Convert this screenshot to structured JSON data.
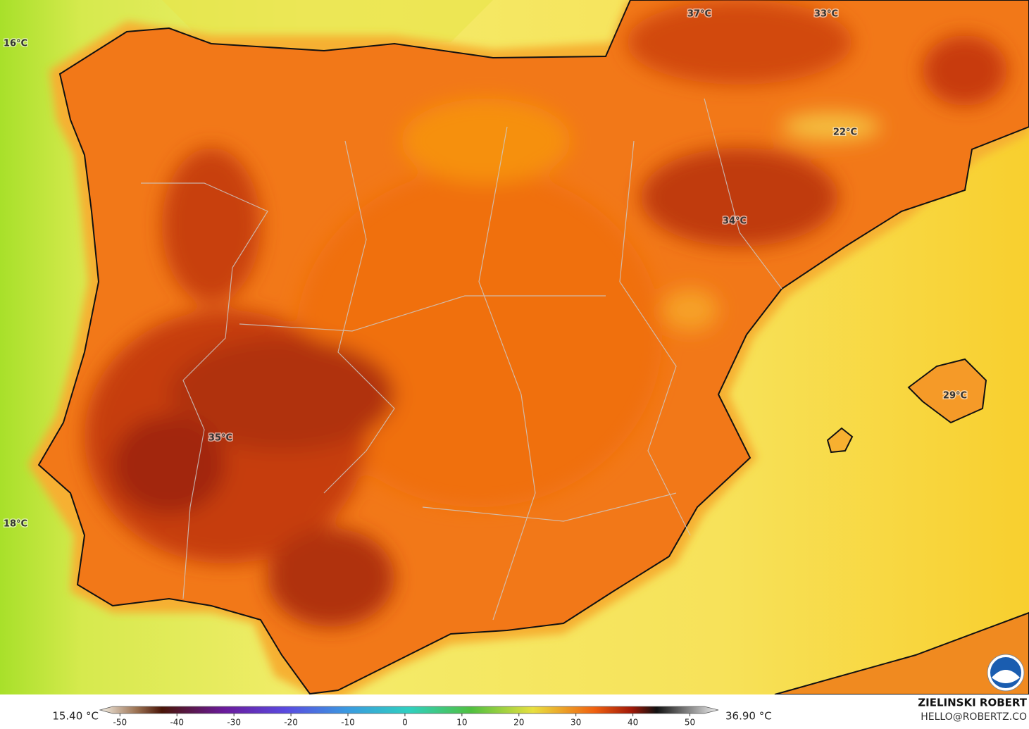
{
  "map": {
    "labels": [
      "37°C",
      "33°C",
      "16°C",
      "22°C",
      "34°C",
      "35°C",
      "29°C",
      "18°C"
    ]
  },
  "colorbar": {
    "min_label": "15.40 °C",
    "max_label": "36.90 °C",
    "lim": [
      -53.5,
      55
    ],
    "ticks": [
      -50,
      -40,
      -30,
      -20,
      -10,
      0,
      10,
      20,
      30,
      40,
      50
    ]
  },
  "credits": {
    "author": "ZIELINSKI ROBERT",
    "contact": "HELLO@ROBERTZ.CO"
  }
}
